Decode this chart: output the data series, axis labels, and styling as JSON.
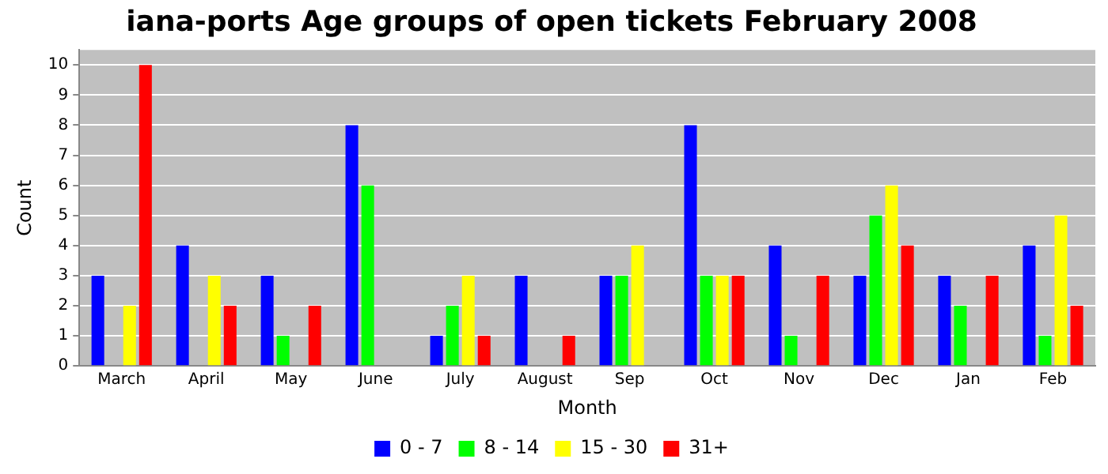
{
  "chart_data": {
    "type": "bar",
    "title": "iana-ports Age groups of open tickets February 2008",
    "xlabel": "Month",
    "ylabel": "Count",
    "categories": [
      "March",
      "April",
      "May",
      "June",
      "July",
      "August",
      "Sep",
      "Oct",
      "Nov",
      "Dec",
      "Jan",
      "Feb"
    ],
    "series": [
      {
        "name": "0 - 7",
        "color": "#0000ff",
        "values": [
          3,
          4,
          3,
          8,
          1,
          3,
          3,
          8,
          4,
          3,
          3,
          4
        ]
      },
      {
        "name": "8 - 14",
        "color": "#00ff00",
        "values": [
          0,
          0,
          1,
          6,
          2,
          0,
          3,
          3,
          1,
          5,
          2,
          1
        ]
      },
      {
        "name": "15 - 30",
        "color": "#ffff00",
        "values": [
          2,
          3,
          0,
          0,
          3,
          0,
          4,
          3,
          0,
          6,
          0,
          5
        ]
      },
      {
        "name": "31+",
        "color": "#ff0000",
        "values": [
          10,
          2,
          2,
          0,
          1,
          1,
          0,
          3,
          3,
          4,
          3,
          2
        ]
      }
    ],
    "ylim": [
      0,
      10.5
    ],
    "yticks": [
      0,
      1,
      2,
      3,
      4,
      5,
      6,
      7,
      8,
      9,
      10
    ],
    "grid": "y",
    "legend": "bottom"
  }
}
